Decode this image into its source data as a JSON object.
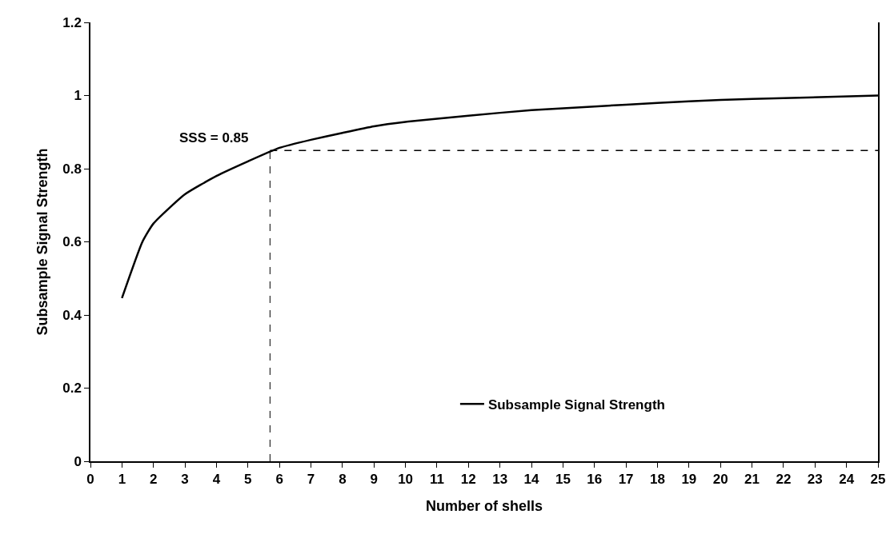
{
  "chart_data": {
    "type": "line",
    "xlabel": "Number of shells",
    "ylabel": "Subsample Signal Strength",
    "x": [
      1,
      1.65,
      2,
      3,
      4,
      5,
      6,
      7,
      8,
      9,
      10,
      12,
      14,
      16,
      18,
      20,
      22,
      25
    ],
    "series": [
      {
        "name": "Subsample Signal Strength",
        "color": "#000000",
        "values": [
          0.446,
          0.6,
          0.65,
          0.73,
          0.78,
          0.82,
          0.857,
          0.879,
          0.898,
          0.916,
          0.928,
          0.945,
          0.96,
          0.97,
          0.98,
          0.988,
          0.993,
          1.0
        ]
      }
    ],
    "xlim": [
      0,
      25
    ],
    "xticks": [
      0,
      1,
      2,
      3,
      4,
      5,
      6,
      7,
      8,
      9,
      10,
      11,
      12,
      13,
      14,
      15,
      16,
      17,
      18,
      19,
      20,
      21,
      22,
      23,
      24,
      25
    ],
    "ylim": [
      0,
      1.2
    ],
    "yticks": [
      0,
      0.2,
      0.4,
      0.6,
      0.8,
      1,
      1.2
    ],
    "ref_lines": [
      {
        "axis": "x",
        "value": 5.7,
        "color": "#000000",
        "line_style": "dashed"
      },
      {
        "axis": "y",
        "value": 0.85,
        "color": "#000000",
        "line_style": "dashed",
        "label": "SSS = 0.85"
      }
    ],
    "grid": false,
    "legend": "bottom",
    "marker": "none",
    "line_style": "solid"
  }
}
